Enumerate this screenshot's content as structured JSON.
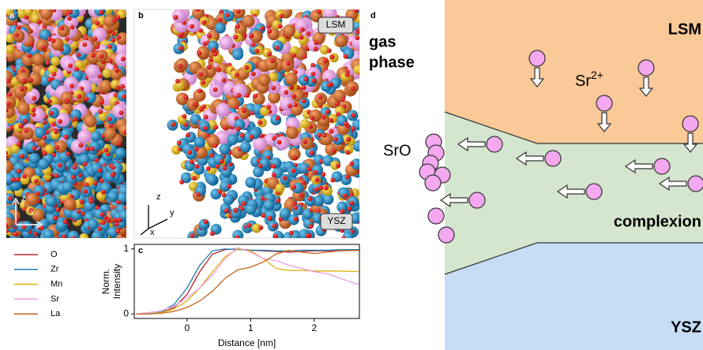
{
  "panels": {
    "a": {
      "label": "a",
      "axes": [
        "z",
        "x"
      ]
    },
    "b": {
      "label": "b",
      "top": "LSM",
      "bottom": "YSZ",
      "axes": [
        "z",
        "y",
        "x"
      ]
    },
    "d": {
      "label": "d",
      "gas_phase": [
        "gas",
        "phase"
      ],
      "top": "LSM",
      "ion": {
        "base": "Sr",
        "sup": "2+"
      },
      "oxide": "SrO",
      "middle": "complexion",
      "bottom": "YSZ"
    }
  },
  "chart_data": {
    "type": "line",
    "panel_label": "c",
    "x": [
      -0.8,
      -0.6,
      -0.4,
      -0.2,
      0,
      0.2,
      0.4,
      0.6,
      0.8,
      1.0,
      1.2,
      1.4,
      1.6,
      1.8,
      2.0,
      2.2,
      2.4,
      2.7
    ],
    "series": [
      {
        "name": "O",
        "color": "#b5272d",
        "values": [
          0,
          0,
          0.02,
          0.1,
          0.3,
          0.65,
          0.92,
          0.99,
          1,
          0.98,
          0.97,
          0.96,
          0.95,
          0.96,
          0.97,
          0.97,
          0.97,
          0.98
        ]
      },
      {
        "name": "Zr",
        "color": "#1f7fb4",
        "values": [
          0,
          0,
          0.03,
          0.15,
          0.4,
          0.75,
          0.97,
          1,
          0.99,
          0.98,
          0.98,
          0.97,
          0.97,
          0.98,
          0.98,
          0.98,
          0.99,
          0.99
        ]
      },
      {
        "name": "Mn",
        "color": "#d9b20f",
        "values": [
          0,
          0,
          0.02,
          0.08,
          0.2,
          0.4,
          0.65,
          0.88,
          1,
          0.97,
          0.85,
          0.7,
          0.67,
          0.67,
          0.66,
          0.66,
          0.66,
          0.65
        ]
      },
      {
        "name": "Sr",
        "color": "#ea9ee4",
        "values": [
          0,
          0.02,
          0.05,
          0.12,
          0.25,
          0.4,
          0.6,
          0.85,
          1.02,
          0.95,
          0.85,
          0.82,
          0.75,
          0.7,
          0.65,
          0.62,
          0.55,
          0.45
        ]
      },
      {
        "name": "La",
        "color": "#c8641e",
        "values": [
          0,
          0,
          0.01,
          0.04,
          0.1,
          0.2,
          0.35,
          0.55,
          0.68,
          0.72,
          0.8,
          0.92,
          0.98,
          0.95,
          0.93,
          0.95,
          0.97,
          0.98
        ]
      }
    ],
    "xlim": [
      -0.83,
      2.71
    ],
    "ylim": [
      -0.07,
      1.07
    ],
    "xticks": [
      0,
      1,
      2
    ],
    "yticks": [
      0,
      1
    ],
    "xlabel": "Distance [nm]",
    "ylabel_lines": [
      "Norm.",
      "Intensity"
    ],
    "legend": "outside-left"
  }
}
